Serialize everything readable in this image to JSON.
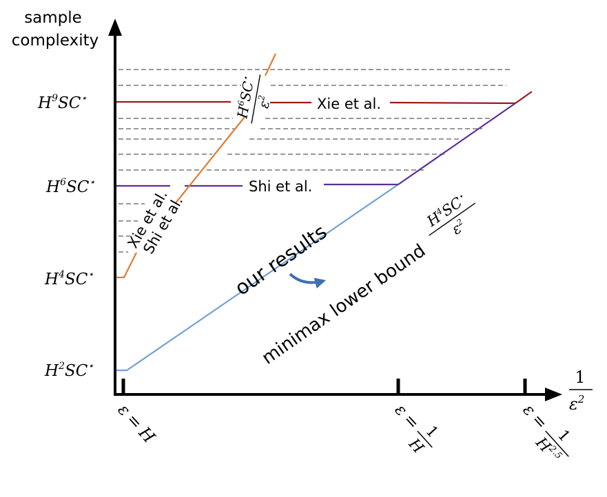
{
  "chart_data": {
    "type": "line",
    "ylabel_line1": "sample",
    "ylabel_line2": "complexity",
    "xlabel_num": "1",
    "xlabel_den": "ε",
    "xlabel_den_exp": "2",
    "y_ticks": [
      {
        "base": "H",
        "exp": "9",
        "rest": "SC",
        "star": "⋆"
      },
      {
        "base": "H",
        "exp": "6",
        "rest": "SC",
        "star": "⋆"
      },
      {
        "base": "H",
        "exp": "4",
        "rest": "SC",
        "star": "⋆"
      },
      {
        "base": "H",
        "exp": "2",
        "rest": "SC",
        "star": "⋆"
      }
    ],
    "x_ticks": [
      {
        "lhs": "ε",
        "eq": "=",
        "rhs": "H"
      },
      {
        "lhs": "ε",
        "eq": "=",
        "num": "1",
        "den": "H"
      },
      {
        "lhs": "ε",
        "eq": "=",
        "num": "1",
        "den": "H",
        "den_exp": "2.5"
      }
    ],
    "series": [
      {
        "name": "Xie et al.",
        "color": "#9b1b1b"
      },
      {
        "name": "Shi et al.",
        "color": "#5b2d9c"
      },
      {
        "name": "minimax lower bound",
        "color": "#6fa0d3"
      }
    ],
    "annotations": {
      "xie_shi_line1": "Xie et al.",
      "xie_shi_line2": "Shi et al.",
      "our_results": "our results",
      "orange_num": "H",
      "orange_num_exp": "6",
      "orange_num_rest": "SC",
      "orange_star": "⋆",
      "orange_den": "ε",
      "orange_den_exp": "2",
      "lower_num": "H",
      "lower_num_exp": "4",
      "lower_num_rest": "SC",
      "lower_star": "⋆",
      "lower_den": "ε",
      "lower_den_exp": "2"
    },
    "colors": {
      "orange": "#e07b2f",
      "blue": "#6fa0d3",
      "purple": "#5b2d9c",
      "red": "#9b1b1b",
      "dashed": "#777777",
      "arrow": "#3f6fb0"
    }
  }
}
